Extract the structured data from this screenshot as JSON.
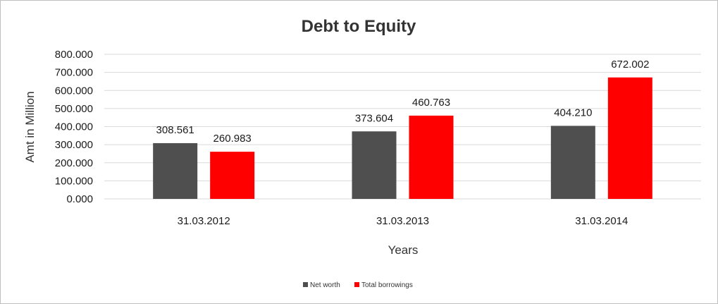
{
  "chart_data": {
    "type": "bar",
    "title": "Debt to Equity",
    "xlabel": "Years",
    "ylabel": "Amt in Million",
    "categories": [
      "31.03.2012",
      "31.03.2013",
      "31.03.2014"
    ],
    "series": [
      {
        "name": "Net worth",
        "values": [
          308.561,
          373.604,
          404.21
        ],
        "color": "#4f4f4f",
        "labels": [
          "308.561",
          "373.604",
          "404.210"
        ]
      },
      {
        "name": "Total borrowings",
        "values": [
          260.983,
          460.763,
          672.002
        ],
        "color": "#ff0000",
        "labels": [
          "260.983",
          "460.763",
          "672.002"
        ]
      }
    ],
    "ylim": [
      0,
      800
    ],
    "yticks": [
      "0.000",
      "100.000",
      "200.000",
      "300.000",
      "400.000",
      "500.000",
      "600.000",
      "700.000",
      "800.000"
    ],
    "grid": true,
    "legend_position": "bottom"
  }
}
